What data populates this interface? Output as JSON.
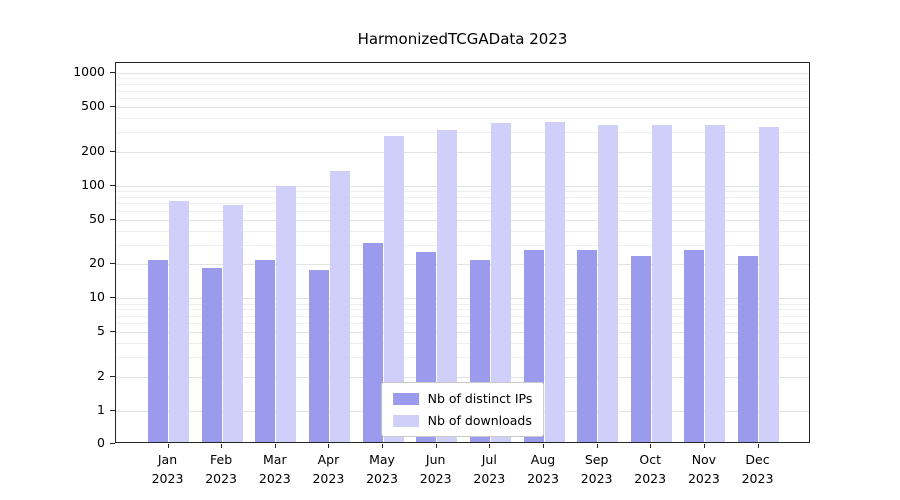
{
  "figure": {
    "title": "HarmonizedTCGAData 2023"
  },
  "chart_data": {
    "type": "bar",
    "title": "HarmonizedTCGAData 2023",
    "categories": [
      "Jan 2023",
      "Feb 2023",
      "Mar 2023",
      "Apr 2023",
      "May 2023",
      "Jun 2023",
      "Jul 2023",
      "Aug 2023",
      "Sep 2023",
      "Oct 2023",
      "Nov 2023",
      "Dec 2023"
    ],
    "series": [
      {
        "name": "Nb of distinct IPs",
        "color": "#9b9bee",
        "values": [
          21,
          18,
          21,
          17,
          30,
          25,
          21,
          26,
          26,
          23,
          26,
          23
        ]
      },
      {
        "name": "Nb of downloads",
        "color": "#cfcffa",
        "values": [
          70,
          65,
          95,
          130,
          265,
          300,
          345,
          355,
          330,
          335,
          335,
          320
        ]
      }
    ],
    "yscale": "symlog",
    "yticks": [
      1000,
      500,
      200,
      100,
      50,
      20,
      10,
      5,
      2,
      1,
      0
    ],
    "ylim": [
      0,
      1300
    ],
    "xlabel": "",
    "ylabel": "",
    "grid": true,
    "legend_position": "lower center",
    "colors": {
      "grid": "#e2e2e2",
      "grid_minor": "#efefef",
      "spine": "#262626",
      "background": "#ffffff"
    }
  }
}
